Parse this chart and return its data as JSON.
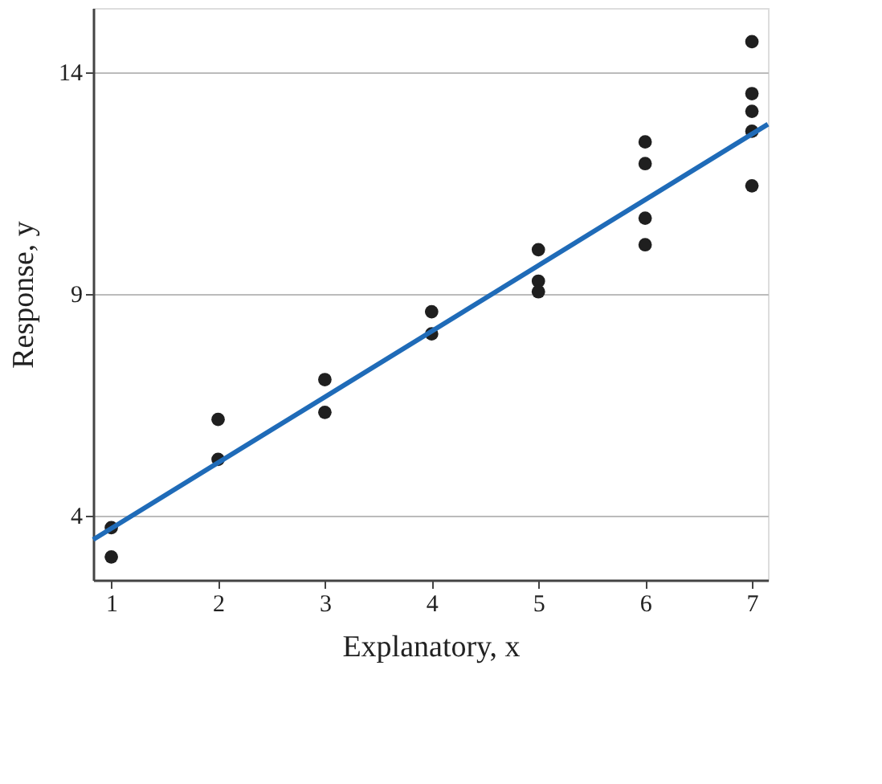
{
  "chart_data": {
    "type": "scatter",
    "xlabel": "Explanatory, x",
    "ylabel": "Response, y",
    "xlim": [
      0.83,
      7.15
    ],
    "ylim": [
      2.54,
      15.44
    ],
    "xticks": [
      1,
      2,
      3,
      4,
      5,
      6,
      7
    ],
    "yticks": [
      4,
      9,
      14
    ],
    "grid": "y",
    "series": [
      {
        "marker": "circle",
        "color": "#1f1f1f",
        "x": [
          1,
          1,
          2,
          2,
          3,
          3,
          4,
          4,
          5,
          5,
          5,
          6,
          6,
          6,
          6,
          7,
          7,
          7,
          7,
          7
        ],
        "values": [
          3.72,
          3.06,
          6.16,
          5.26,
          7.06,
          6.32,
          8.59,
          8.09,
          9.99,
          9.28,
          9.04,
          12.42,
          11.93,
          10.7,
          10.1,
          14.68,
          13.51,
          13.11,
          12.66,
          11.43
        ]
      },
      {
        "type": "line",
        "color": "#1f6bb8",
        "x": [
          0.83,
          7.15
        ],
        "values": [
          3.45,
          12.82
        ],
        "line_style": "solid"
      }
    ]
  }
}
